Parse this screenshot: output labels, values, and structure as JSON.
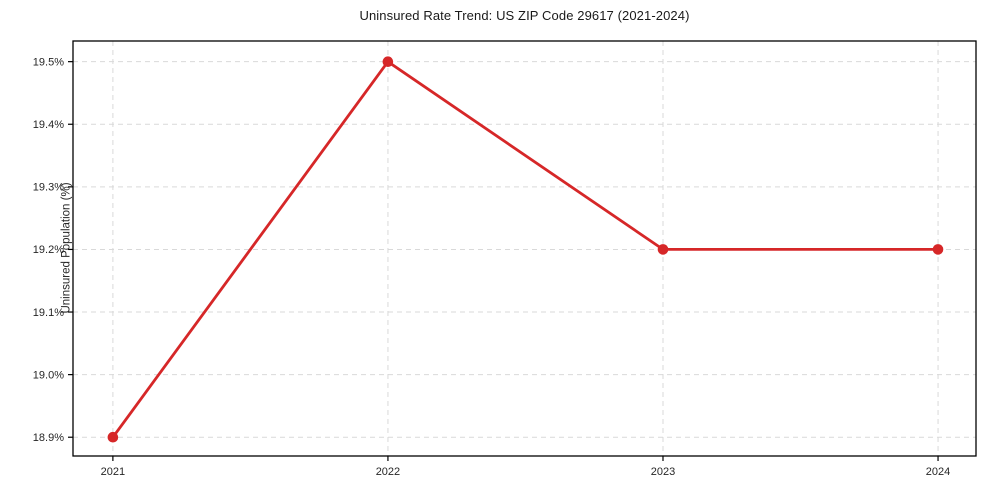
{
  "chart": {
    "title": "Uninsured Rate Trend: US ZIP Code 29617 (2021-2024)",
    "ylabel": "Uninsured Population (%)"
  },
  "chart_data": {
    "type": "line",
    "title": "Uninsured Rate Trend: US ZIP Code 29617 (2021-2024)",
    "xlabel": "",
    "ylabel": "Uninsured Population (%)",
    "x": [
      2021,
      2022,
      2023,
      2024
    ],
    "x_tick_labels": [
      "2021",
      "2022",
      "2023",
      "2024"
    ],
    "values": [
      18.9,
      19.5,
      19.2,
      19.2
    ],
    "yticks": [
      18.9,
      19.0,
      19.1,
      19.2,
      19.3,
      19.4,
      19.5
    ],
    "y_tick_labels": [
      "18.9%",
      "19.0%",
      "19.1%",
      "19.2%",
      "19.3%",
      "19.4%",
      "19.5%"
    ],
    "xlim": [
      2020.855,
      2024.138
    ],
    "ylim": [
      18.87,
      19.533
    ],
    "grid": true,
    "grid_style": "dashed",
    "legend": false,
    "line_color": "#d62728",
    "marker": "circle",
    "marker_color": "#d62728",
    "grid_color": "#d9d9d9",
    "frame_color": "#000000",
    "text_color": "#262626"
  }
}
